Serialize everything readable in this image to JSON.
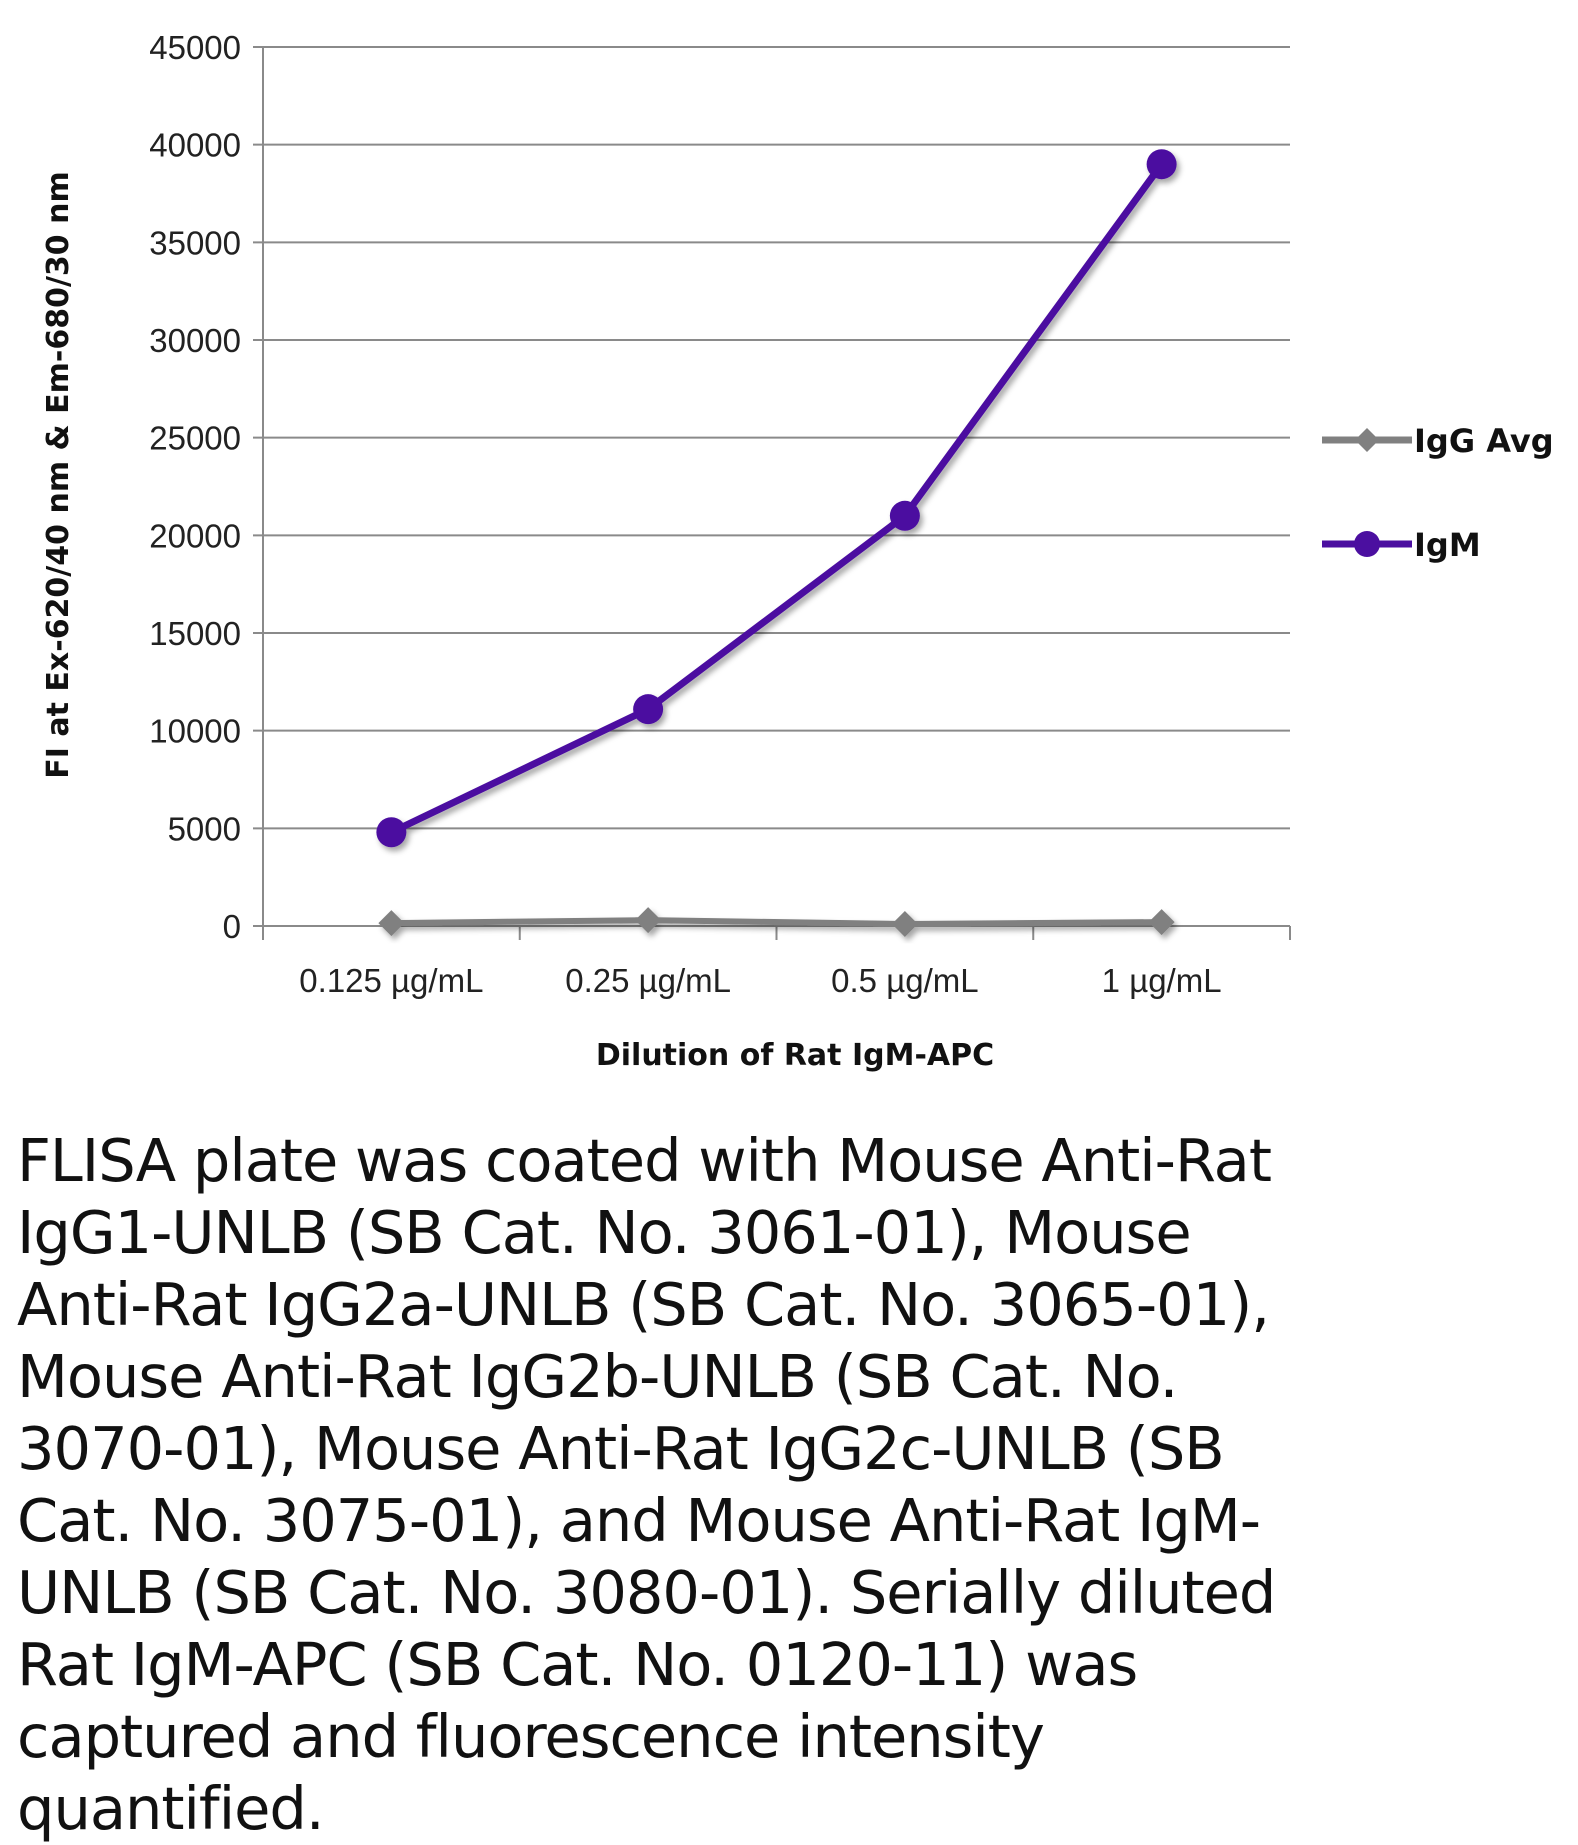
{
  "chart_data": {
    "type": "line",
    "title": "",
    "xlabel": "Dilution of Rat IgM-APC",
    "ylabel": "FI at Ex-620/40 nm & Em-680/30 nm",
    "categories": [
      "0.125 µg/mL",
      "0.25 µg/mL",
      "0.5 µg/mL",
      "1 µg/mL"
    ],
    "ylim": [
      0,
      45000
    ],
    "yticks": [
      0,
      5000,
      10000,
      15000,
      20000,
      25000,
      30000,
      35000,
      40000,
      45000
    ],
    "grid": true,
    "legend_position": "right",
    "series": [
      {
        "name": "IgG Avg",
        "color": "#808080",
        "marker": "diamond",
        "values": [
          150,
          300,
          100,
          200
        ]
      },
      {
        "name": "IgM",
        "color": "#4b0fa0",
        "marker": "circle",
        "values": [
          4800,
          11100,
          21000,
          39000
        ]
      }
    ]
  },
  "caption": "FLISA plate was coated with Mouse Anti-Rat IgG1-UNLB (SB Cat. No. 3061-01), Mouse Anti-Rat IgG2a-UNLB (SB Cat. No. 3065-01), Mouse Anti-Rat IgG2b-UNLB (SB Cat. No. 3070-01), Mouse Anti-Rat IgG2c-UNLB (SB Cat. No. 3075-01), and Mouse Anti-Rat IgM-UNLB (SB Cat. No. 3080-01).  Serially diluted Rat IgM-APC (SB Cat. No. 0120-11) was captured and fluorescence intensity quantified."
}
